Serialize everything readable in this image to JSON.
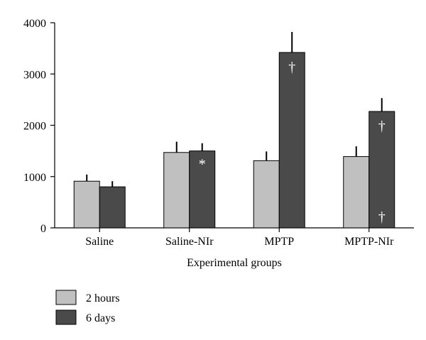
{
  "chart_data": {
    "type": "bar",
    "title": "",
    "xlabel": "Experimental groups",
    "ylabel": "",
    "ylim": [
      0,
      4000
    ],
    "yticks": [
      0,
      1000,
      2000,
      3000,
      4000
    ],
    "categories": [
      "Saline",
      "Saline-NIr",
      "MPTP",
      "MPTP-NIr"
    ],
    "series": [
      {
        "name": "2 hours",
        "color": "#c0c0c0",
        "values": [
          910,
          1470,
          1310,
          1390
        ],
        "errors": [
          130,
          210,
          180,
          200
        ]
      },
      {
        "name": "6 days",
        "color": "#4a4a4a",
        "values": [
          800,
          1500,
          3420,
          2270
        ],
        "errors": [
          110,
          150,
          400,
          260
        ]
      }
    ],
    "annotations": [
      {
        "category": "Saline-NIr",
        "series": "6 days",
        "text": "*",
        "at": 1250
      },
      {
        "category": "MPTP",
        "series": "6 days",
        "text": "†",
        "at": 3140
      },
      {
        "category": "MPTP-NIr",
        "series": "6 days",
        "text": "†",
        "at": 1990
      },
      {
        "category": "MPTP-NIr",
        "series": "6 days",
        "text": "†",
        "at": 220
      }
    ],
    "legend_position": "bottom-left",
    "grid": false
  }
}
